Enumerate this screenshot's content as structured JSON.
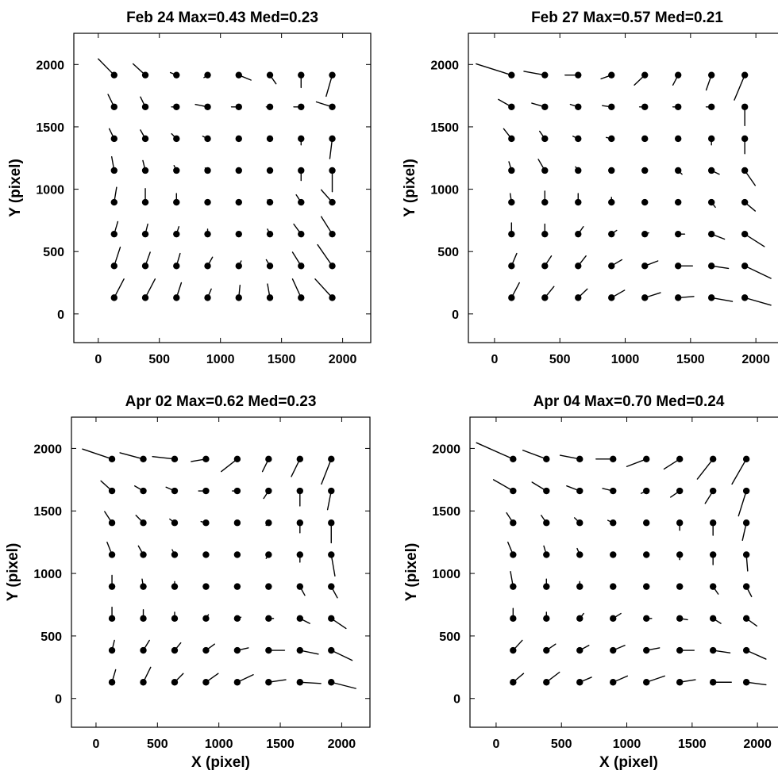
{
  "chart_data": [
    {
      "type": "scatter",
      "title": "Feb 24 Max=0.43 Med=0.23",
      "xlabel": "",
      "ylabel": "Y (pixel)",
      "xlim": [
        -200,
        2230
      ],
      "ylim": [
        -230,
        2250
      ],
      "xticks": [
        0,
        500,
        1000,
        1500,
        2000
      ],
      "yticks": [
        0,
        500,
        1000,
        1500,
        2000
      ],
      "grid_x": [
        130,
        385,
        640,
        895,
        1150,
        1405,
        1660,
        1915
      ],
      "grid_y": [
        130,
        385,
        640,
        895,
        1150,
        1405,
        1660,
        1915
      ],
      "vectors": [
        [
          [
            80,
            150
          ],
          [
            80,
            150
          ],
          [
            40,
            120
          ],
          [
            30,
            70
          ],
          [
            10,
            100
          ],
          [
            -20,
            110
          ],
          [
            -70,
            150
          ],
          [
            -140,
            150
          ]
        ],
        [
          [
            50,
            150
          ],
          [
            40,
            110
          ],
          [
            30,
            100
          ],
          [
            40,
            70
          ],
          [
            20,
            40
          ],
          [
            -30,
            50
          ],
          [
            -70,
            110
          ],
          [
            -120,
            170
          ]
        ],
        [
          [
            30,
            100
          ],
          [
            20,
            80
          ],
          [
            20,
            60
          ],
          [
            0,
            40
          ],
          [
            0,
            20
          ],
          [
            -20,
            40
          ],
          [
            -60,
            80
          ],
          [
            -90,
            140
          ]
        ],
        [
          [
            20,
            120
          ],
          [
            0,
            110
          ],
          [
            0,
            70
          ],
          [
            0,
            20
          ],
          [
            0,
            0
          ],
          [
            -20,
            20
          ],
          [
            -40,
            60
          ],
          [
            -90,
            100
          ]
        ],
        [
          [
            -20,
            110
          ],
          [
            -20,
            80
          ],
          [
            -20,
            40
          ],
          [
            -20,
            20
          ],
          [
            0,
            0
          ],
          [
            0,
            0
          ],
          [
            0,
            -80
          ],
          [
            0,
            -170
          ]
        ],
        [
          [
            -40,
            80
          ],
          [
            -40,
            70
          ],
          [
            -40,
            40
          ],
          [
            -40,
            20
          ],
          [
            -20,
            0
          ],
          [
            0,
            0
          ],
          [
            0,
            -50
          ],
          [
            -20,
            -160
          ]
        ],
        [
          [
            -50,
            100
          ],
          [
            -40,
            80
          ],
          [
            -40,
            0
          ],
          [
            -100,
            20
          ],
          [
            -60,
            0
          ],
          [
            -30,
            0
          ],
          [
            -60,
            0
          ],
          [
            -130,
            40
          ]
        ],
        [
          [
            -130,
            130
          ],
          [
            -100,
            90
          ],
          [
            -50,
            20
          ],
          [
            -30,
            -20
          ],
          [
            100,
            -40
          ],
          [
            50,
            -70
          ],
          [
            0,
            -100
          ],
          [
            -50,
            -170
          ]
        ]
      ]
    },
    {
      "type": "scatter",
      "title": "Feb 27 Max=0.57 Med=0.21",
      "xlabel": "",
      "ylabel": "Y (pixel)",
      "xlim": [
        -200,
        2230
      ],
      "ylim": [
        -230,
        2250
      ],
      "xticks": [
        0,
        500,
        1000,
        1500,
        2000
      ],
      "yticks": [
        0,
        500,
        1000,
        1500,
        2000
      ],
      "grid_x": [
        130,
        385,
        640,
        895,
        1150,
        1405,
        1660,
        1915
      ],
      "grid_y": [
        130,
        385,
        640,
        895,
        1150,
        1405,
        1660,
        1915
      ],
      "vectors": [
        [
          [
            60,
            120
          ],
          [
            70,
            90
          ],
          [
            70,
            70
          ],
          [
            100,
            60
          ],
          [
            120,
            40
          ],
          [
            120,
            10
          ],
          [
            160,
            -30
          ],
          [
            200,
            -60
          ]
        ],
        [
          [
            40,
            100
          ],
          [
            50,
            80
          ],
          [
            60,
            80
          ],
          [
            80,
            50
          ],
          [
            100,
            40
          ],
          [
            110,
            0
          ],
          [
            130,
            -20
          ],
          [
            200,
            -100
          ]
        ],
        [
          [
            0,
            90
          ],
          [
            0,
            80
          ],
          [
            40,
            60
          ],
          [
            40,
            30
          ],
          [
            30,
            10
          ],
          [
            50,
            0
          ],
          [
            100,
            -40
          ],
          [
            150,
            -100
          ]
        ],
        [
          [
            -10,
            70
          ],
          [
            0,
            90
          ],
          [
            0,
            70
          ],
          [
            0,
            40
          ],
          [
            0,
            0
          ],
          [
            0,
            0
          ],
          [
            30,
            -40
          ],
          [
            80,
            -70
          ]
        ],
        [
          [
            -20,
            70
          ],
          [
            -50,
            90
          ],
          [
            -20,
            30
          ],
          [
            -20,
            0
          ],
          [
            0,
            0
          ],
          [
            30,
            -30
          ],
          [
            60,
            -30
          ],
          [
            80,
            -120
          ]
        ],
        [
          [
            -60,
            80
          ],
          [
            -40,
            60
          ],
          [
            -40,
            20
          ],
          [
            -40,
            10
          ],
          [
            0,
            0
          ],
          [
            0,
            0
          ],
          [
            0,
            -50
          ],
          [
            0,
            -120
          ]
        ],
        [
          [
            -100,
            60
          ],
          [
            -100,
            30
          ],
          [
            -60,
            20
          ],
          [
            -70,
            10
          ],
          [
            -40,
            0
          ],
          [
            -40,
            0
          ],
          [
            -40,
            0
          ],
          [
            0,
            -150
          ]
        ],
        [
          [
            -270,
            90
          ],
          [
            -160,
            30
          ],
          [
            -100,
            0
          ],
          [
            -80,
            -30
          ],
          [
            -80,
            -80
          ],
          [
            -40,
            -80
          ],
          [
            -40,
            -120
          ],
          [
            -80,
            -200
          ]
        ]
      ]
    },
    {
      "type": "scatter",
      "title": "Apr 02 Max=0.62 Med=0.23",
      "xlabel": "X (pixel)",
      "ylabel": "Y (pixel)",
      "xlim": [
        -200,
        2230
      ],
      "ylim": [
        -230,
        2250
      ],
      "xticks": [
        0,
        500,
        1000,
        1500,
        2000
      ],
      "yticks": [
        0,
        500,
        1000,
        1500,
        2000
      ],
      "grid_x": [
        130,
        385,
        640,
        895,
        1150,
        1405,
        1660,
        1915
      ],
      "grid_y": [
        130,
        385,
        640,
        895,
        1150,
        1405,
        1660,
        1915
      ],
      "vectors": [
        [
          [
            30,
            100
          ],
          [
            60,
            120
          ],
          [
            70,
            70
          ],
          [
            100,
            70
          ],
          [
            130,
            60
          ],
          [
            140,
            20
          ],
          [
            170,
            -10
          ],
          [
            200,
            -50
          ]
        ],
        [
          [
            20,
            80
          ],
          [
            50,
            80
          ],
          [
            50,
            60
          ],
          [
            70,
            50
          ],
          [
            90,
            20
          ],
          [
            130,
            0
          ],
          [
            150,
            -30
          ],
          [
            170,
            -80
          ]
        ],
        [
          [
            0,
            90
          ],
          [
            0,
            70
          ],
          [
            0,
            50
          ],
          [
            20,
            30
          ],
          [
            30,
            10
          ],
          [
            40,
            0
          ],
          [
            80,
            -40
          ],
          [
            120,
            -80
          ]
        ],
        [
          [
            0,
            90
          ],
          [
            -10,
            60
          ],
          [
            0,
            40
          ],
          [
            0,
            20
          ],
          [
            0,
            0
          ],
          [
            0,
            -20
          ],
          [
            40,
            -70
          ],
          [
            50,
            -90
          ]
        ],
        [
          [
            -40,
            100
          ],
          [
            -40,
            70
          ],
          [
            -20,
            40
          ],
          [
            -20,
            0
          ],
          [
            0,
            0
          ],
          [
            -20,
            -30
          ],
          [
            0,
            -60
          ],
          [
            30,
            -170
          ]
        ],
        [
          [
            -60,
            90
          ],
          [
            -60,
            60
          ],
          [
            -40,
            30
          ],
          [
            -40,
            10
          ],
          [
            0,
            0
          ],
          [
            -20,
            -20
          ],
          [
            0,
            -80
          ],
          [
            0,
            -160
          ]
        ],
        [
          [
            -90,
            80
          ],
          [
            -70,
            40
          ],
          [
            -70,
            30
          ],
          [
            -60,
            0
          ],
          [
            -40,
            0
          ],
          [
            -40,
            -60
          ],
          [
            0,
            -120
          ],
          [
            -30,
            -150
          ]
        ],
        [
          [
            -240,
            80
          ],
          [
            -190,
            50
          ],
          [
            -180,
            20
          ],
          [
            -120,
            -20
          ],
          [
            -130,
            -100
          ],
          [
            -50,
            -100
          ],
          [
            -70,
            -140
          ],
          [
            -80,
            -200
          ]
        ]
      ]
    },
    {
      "type": "scatter",
      "title": "Apr 04 Max=0.70 Med=0.24",
      "xlabel": "X (pixel)",
      "ylabel": "Y (pixel)",
      "xlim": [
        -200,
        2230
      ],
      "ylim": [
        -230,
        2250
      ],
      "xticks": [
        0,
        500,
        1000,
        1500,
        2000
      ],
      "yticks": [
        0,
        500,
        1000,
        1500,
        2000
      ],
      "grid_x": [
        130,
        385,
        640,
        895,
        1150,
        1405,
        1660,
        1915
      ],
      "grid_y": [
        130,
        385,
        640,
        895,
        1150,
        1405,
        1660,
        1915
      ],
      "vectors": [
        [
          [
            80,
            70
          ],
          [
            100,
            80
          ],
          [
            90,
            40
          ],
          [
            110,
            50
          ],
          [
            140,
            50
          ],
          [
            120,
            20
          ],
          [
            140,
            0
          ],
          [
            150,
            -20
          ]
        ],
        [
          [
            70,
            80
          ],
          [
            70,
            50
          ],
          [
            70,
            40
          ],
          [
            90,
            40
          ],
          [
            100,
            20
          ],
          [
            110,
            0
          ],
          [
            130,
            -20
          ],
          [
            150,
            -70
          ]
        ],
        [
          [
            0,
            80
          ],
          [
            0,
            50
          ],
          [
            30,
            40
          ],
          [
            60,
            40
          ],
          [
            40,
            0
          ],
          [
            60,
            -10
          ],
          [
            60,
            -40
          ],
          [
            80,
            -60
          ]
        ],
        [
          [
            -20,
            120
          ],
          [
            0,
            60
          ],
          [
            0,
            40
          ],
          [
            0,
            20
          ],
          [
            0,
            0
          ],
          [
            0,
            0
          ],
          [
            40,
            -60
          ],
          [
            40,
            -80
          ]
        ],
        [
          [
            -40,
            100
          ],
          [
            -20,
            70
          ],
          [
            -20,
            50
          ],
          [
            0,
            0
          ],
          [
            0,
            0
          ],
          [
            0,
            -40
          ],
          [
            0,
            -80
          ],
          [
            10,
            -130
          ]
        ],
        [
          [
            -50,
            80
          ],
          [
            -40,
            60
          ],
          [
            -40,
            40
          ],
          [
            -40,
            20
          ],
          [
            -20,
            0
          ],
          [
            0,
            -60
          ],
          [
            0,
            -100
          ],
          [
            -30,
            -140
          ]
        ],
        [
          [
            -150,
            90
          ],
          [
            -110,
            70
          ],
          [
            -100,
            40
          ],
          [
            -80,
            20
          ],
          [
            -40,
            -20
          ],
          [
            -70,
            -50
          ],
          [
            -60,
            -100
          ],
          [
            -60,
            -200
          ]
        ],
        [
          [
            -280,
            130
          ],
          [
            -180,
            70
          ],
          [
            -150,
            30
          ],
          [
            -130,
            0
          ],
          [
            -150,
            -60
          ],
          [
            -120,
            -80
          ],
          [
            -120,
            -160
          ],
          [
            -110,
            -200
          ]
        ]
      ]
    }
  ]
}
